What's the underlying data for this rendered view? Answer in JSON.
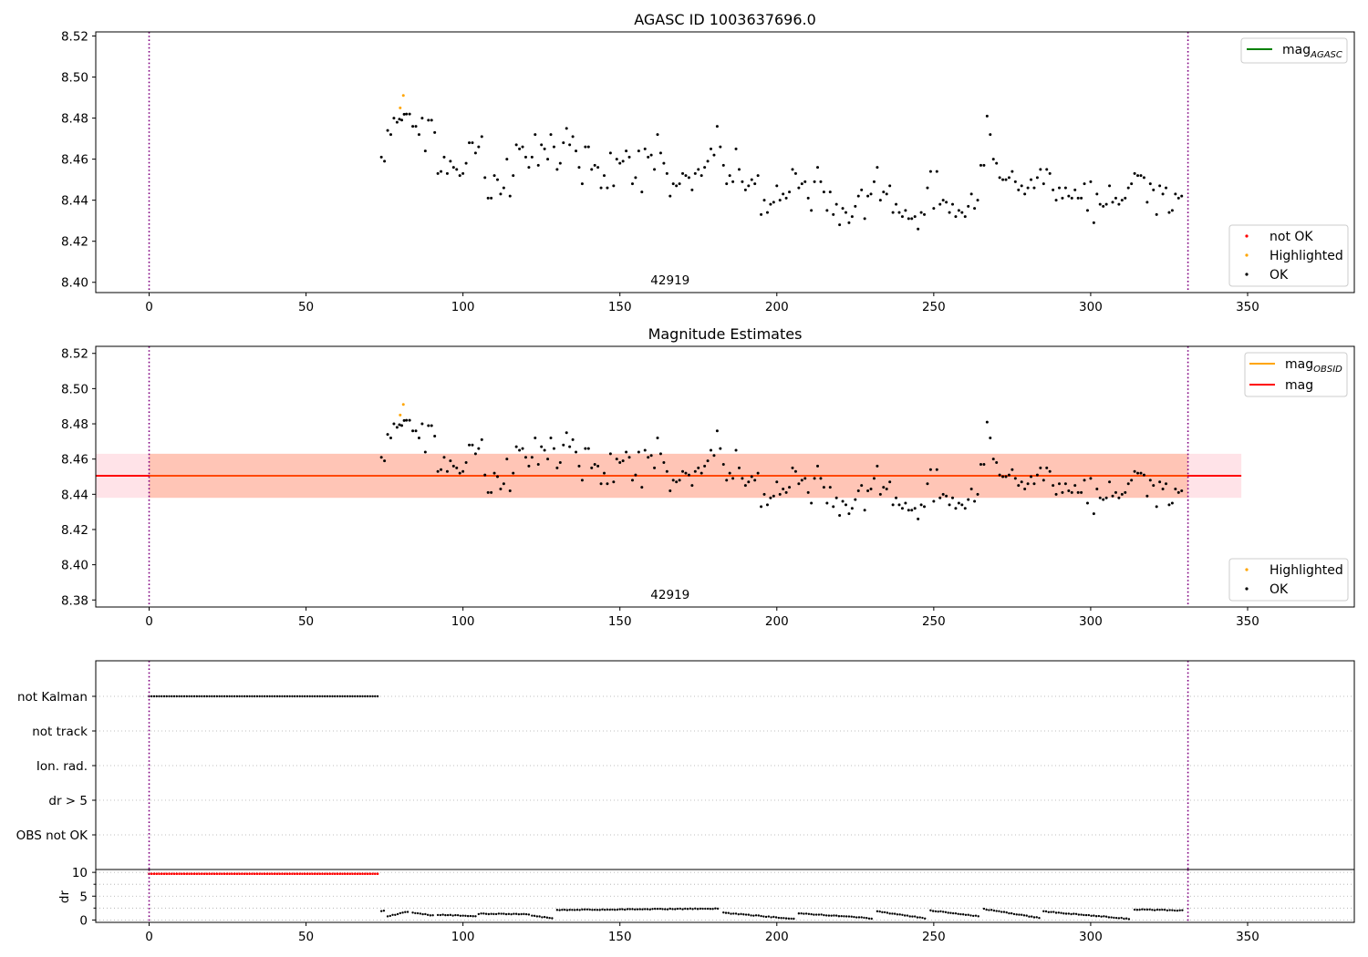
{
  "chart_data": [
    {
      "type": "scatter",
      "title": "AGASC ID 1003637696.0",
      "xlim": [
        -17,
        384
      ],
      "ylim": [
        8.395,
        8.522
      ],
      "xticks": [
        0,
        50,
        100,
        150,
        200,
        250,
        300,
        350
      ],
      "yticks": [
        8.4,
        8.42,
        8.44,
        8.46,
        8.48,
        8.5,
        8.52
      ],
      "obs_boundaries": [
        0,
        331
      ],
      "obs_labels": [
        {
          "x": 166,
          "text": "42919"
        }
      ],
      "line_legend": [
        {
          "name": "mag_AGASC",
          "color": "#008000"
        }
      ],
      "marker_legend": [
        {
          "name": "not OK",
          "color": "#ff0000"
        },
        {
          "name": "Highlighted",
          "color": "#ffa500"
        },
        {
          "name": "OK",
          "color": "#000000"
        }
      ],
      "highlighted": [
        [
          80,
          8.485
        ],
        [
          81,
          8.491
        ]
      ],
      "ok_anchors": [
        [
          74,
          8.461
        ],
        [
          75,
          8.459
        ],
        [
          76,
          8.474
        ],
        [
          77,
          8.472
        ],
        [
          78,
          8.48
        ],
        [
          79,
          8.478
        ],
        [
          82,
          8.482
        ],
        [
          83,
          8.482
        ],
        [
          84,
          8.476
        ],
        [
          85,
          8.476
        ],
        [
          86,
          8.472
        ],
        [
          87,
          8.48
        ],
        [
          88,
          8.464
        ],
        [
          89,
          8.479
        ],
        [
          90,
          8.479
        ],
        [
          91,
          8.473
        ],
        [
          92,
          8.453
        ],
        [
          93,
          8.454
        ],
        [
          94,
          8.461
        ],
        [
          95,
          8.453
        ],
        [
          96,
          8.459
        ],
        [
          97,
          8.456
        ],
        [
          98,
          8.455
        ],
        [
          99,
          8.452
        ],
        [
          100,
          8.453
        ],
        [
          101,
          8.458
        ],
        [
          102,
          8.468
        ],
        [
          103,
          8.468
        ],
        [
          104,
          8.463
        ],
        [
          105,
          8.466
        ],
        [
          106,
          8.471
        ],
        [
          107,
          8.451
        ],
        [
          108,
          8.441
        ],
        [
          109,
          8.441
        ],
        [
          110,
          8.452
        ],
        [
          111,
          8.45
        ],
        [
          112,
          8.443
        ],
        [
          113,
          8.446
        ],
        [
          114,
          8.46
        ],
        [
          115,
          8.442
        ],
        [
          116,
          8.452
        ],
        [
          117,
          8.467
        ],
        [
          118,
          8.465
        ],
        [
          119,
          8.466
        ],
        [
          120,
          8.461
        ],
        [
          121,
          8.456
        ],
        [
          122,
          8.461
        ],
        [
          123,
          8.472
        ],
        [
          124,
          8.457
        ],
        [
          125,
          8.467
        ],
        [
          126,
          8.465
        ],
        [
          127,
          8.46
        ],
        [
          128,
          8.472
        ],
        [
          129,
          8.466
        ],
        [
          130,
          8.455
        ],
        [
          131,
          8.458
        ],
        [
          132,
          8.468
        ],
        [
          133,
          8.475
        ],
        [
          134,
          8.467
        ],
        [
          135,
          8.471
        ],
        [
          136,
          8.464
        ],
        [
          137,
          8.456
        ],
        [
          138,
          8.448
        ],
        [
          139,
          8.466
        ],
        [
          140,
          8.466
        ],
        [
          141,
          8.455
        ],
        [
          142,
          8.457
        ],
        [
          143,
          8.456
        ],
        [
          144,
          8.446
        ],
        [
          145,
          8.452
        ],
        [
          146,
          8.446
        ],
        [
          147,
          8.463
        ],
        [
          148,
          8.447
        ],
        [
          149,
          8.46
        ],
        [
          150,
          8.458
        ],
        [
          151,
          8.459
        ],
        [
          152,
          8.464
        ],
        [
          153,
          8.461
        ],
        [
          154,
          8.448
        ],
        [
          155,
          8.451
        ],
        [
          156,
          8.464
        ],
        [
          157,
          8.444
        ],
        [
          158,
          8.465
        ],
        [
          159,
          8.461
        ],
        [
          160,
          8.462
        ],
        [
          161,
          8.455
        ],
        [
          162,
          8.472
        ],
        [
          163,
          8.463
        ],
        [
          164,
          8.458
        ],
        [
          165,
          8.453
        ],
        [
          166,
          8.442
        ],
        [
          167,
          8.448
        ],
        [
          168,
          8.447
        ],
        [
          169,
          8.448
        ],
        [
          170,
          8.453
        ],
        [
          171,
          8.452
        ],
        [
          172,
          8.451
        ],
        [
          173,
          8.445
        ],
        [
          174,
          8.453
        ],
        [
          175,
          8.455
        ],
        [
          176,
          8.452
        ],
        [
          177,
          8.456
        ],
        [
          178,
          8.459
        ],
        [
          179,
          8.465
        ],
        [
          180,
          8.462
        ],
        [
          181,
          8.476
        ],
        [
          182,
          8.466
        ],
        [
          183,
          8.457
        ],
        [
          184,
          8.448
        ],
        [
          185,
          8.452
        ],
        [
          186,
          8.449
        ],
        [
          187,
          8.465
        ],
        [
          188,
          8.455
        ],
        [
          189,
          8.449
        ],
        [
          190,
          8.445
        ],
        [
          191,
          8.447
        ],
        [
          192,
          8.45
        ],
        [
          193,
          8.448
        ],
        [
          194,
          8.452
        ],
        [
          195,
          8.433
        ],
        [
          196,
          8.44
        ],
        [
          197,
          8.434
        ],
        [
          198,
          8.438
        ],
        [
          199,
          8.439
        ],
        [
          200,
          8.447
        ],
        [
          201,
          8.44
        ],
        [
          202,
          8.443
        ],
        [
          203,
          8.441
        ],
        [
          204,
          8.444
        ],
        [
          205,
          8.455
        ],
        [
          206,
          8.453
        ],
        [
          207,
          8.446
        ],
        [
          208,
          8.448
        ],
        [
          209,
          8.449
        ],
        [
          210,
          8.441
        ],
        [
          211,
          8.435
        ],
        [
          212,
          8.449
        ],
        [
          213,
          8.456
        ],
        [
          214,
          8.449
        ],
        [
          215,
          8.444
        ],
        [
          216,
          8.435
        ],
        [
          217,
          8.444
        ],
        [
          218,
          8.433
        ],
        [
          219,
          8.438
        ],
        [
          220,
          8.428
        ],
        [
          221,
          8.436
        ],
        [
          222,
          8.434
        ],
        [
          223,
          8.429
        ],
        [
          224,
          8.432
        ],
        [
          225,
          8.437
        ],
        [
          226,
          8.442
        ],
        [
          227,
          8.445
        ],
        [
          228,
          8.431
        ],
        [
          229,
          8.442
        ],
        [
          230,
          8.443
        ],
        [
          231,
          8.449
        ],
        [
          232,
          8.456
        ],
        [
          233,
          8.44
        ],
        [
          234,
          8.444
        ],
        [
          235,
          8.443
        ],
        [
          236,
          8.447
        ],
        [
          237,
          8.434
        ],
        [
          238,
          8.438
        ],
        [
          239,
          8.434
        ],
        [
          240,
          8.432
        ],
        [
          241,
          8.435
        ],
        [
          242,
          8.431
        ],
        [
          243,
          8.431
        ],
        [
          244,
          8.432
        ],
        [
          245,
          8.426
        ],
        [
          246,
          8.434
        ],
        [
          247,
          8.433
        ],
        [
          248,
          8.446
        ],
        [
          249,
          8.454
        ],
        [
          250,
          8.436
        ],
        [
          251,
          8.454
        ],
        [
          252,
          8.438
        ],
        [
          253,
          8.44
        ],
        [
          254,
          8.439
        ],
        [
          255,
          8.434
        ],
        [
          256,
          8.438
        ],
        [
          257,
          8.432
        ],
        [
          258,
          8.435
        ],
        [
          259,
          8.434
        ],
        [
          260,
          8.432
        ],
        [
          261,
          8.437
        ],
        [
          262,
          8.443
        ],
        [
          263,
          8.436
        ],
        [
          264,
          8.44
        ],
        [
          265,
          8.457
        ],
        [
          266,
          8.457
        ],
        [
          267,
          8.481
        ],
        [
          268,
          8.472
        ],
        [
          269,
          8.46
        ],
        [
          270,
          8.458
        ],
        [
          271,
          8.451
        ],
        [
          272,
          8.45
        ],
        [
          273,
          8.45
        ],
        [
          274,
          8.451
        ],
        [
          275,
          8.454
        ],
        [
          276,
          8.449
        ],
        [
          277,
          8.445
        ],
        [
          278,
          8.447
        ],
        [
          279,
          8.443
        ],
        [
          280,
          8.446
        ],
        [
          281,
          8.45
        ],
        [
          282,
          8.446
        ],
        [
          283,
          8.451
        ],
        [
          284,
          8.455
        ],
        [
          285,
          8.448
        ],
        [
          286,
          8.455
        ],
        [
          287,
          8.453
        ],
        [
          288,
          8.445
        ],
        [
          289,
          8.44
        ],
        [
          290,
          8.446
        ],
        [
          291,
          8.441
        ],
        [
          292,
          8.446
        ],
        [
          293,
          8.442
        ],
        [
          294,
          8.441
        ],
        [
          295,
          8.445
        ],
        [
          296,
          8.441
        ],
        [
          297,
          8.441
        ],
        [
          298,
          8.448
        ],
        [
          299,
          8.435
        ],
        [
          300,
          8.449
        ],
        [
          301,
          8.429
        ],
        [
          302,
          8.443
        ],
        [
          303,
          8.438
        ],
        [
          304,
          8.437
        ],
        [
          305,
          8.438
        ],
        [
          306,
          8.447
        ],
        [
          307,
          8.439
        ],
        [
          308,
          8.441
        ],
        [
          309,
          8.438
        ],
        [
          310,
          8.44
        ],
        [
          311,
          8.441
        ],
        [
          312,
          8.446
        ],
        [
          313,
          8.448
        ],
        [
          314,
          8.453
        ],
        [
          315,
          8.452
        ],
        [
          316,
          8.452
        ],
        [
          317,
          8.451
        ],
        [
          318,
          8.439
        ],
        [
          319,
          8.448
        ],
        [
          320,
          8.445
        ],
        [
          321,
          8.433
        ],
        [
          322,
          8.447
        ],
        [
          323,
          8.443
        ],
        [
          324,
          8.446
        ],
        [
          325,
          8.434
        ],
        [
          326,
          8.435
        ],
        [
          327,
          8.443
        ],
        [
          328,
          8.441
        ],
        [
          329,
          8.442
        ]
      ]
    },
    {
      "type": "scatter",
      "title": "Magnitude Estimates",
      "xlim": [
        -17,
        384
      ],
      "ylim": [
        8.376,
        8.524
      ],
      "xticks": [
        0,
        50,
        100,
        150,
        200,
        250,
        300,
        350
      ],
      "yticks": [
        8.38,
        8.4,
        8.42,
        8.44,
        8.46,
        8.48,
        8.5,
        8.52
      ],
      "obs_boundaries": [
        0,
        331
      ],
      "obs_labels": [
        {
          "x": 166,
          "text": "42919"
        }
      ],
      "mag": 8.4505,
      "band": {
        "low": 8.438,
        "high": 8.463,
        "x_end": 348
      },
      "line_legend": [
        {
          "name": "mag_OBSID",
          "color": "#ffa500"
        },
        {
          "name": "mag",
          "color": "#ff0000"
        }
      ],
      "marker_legend": [
        {
          "name": "Highlighted",
          "color": "#ffa500"
        },
        {
          "name": "OK",
          "color": "#000000"
        }
      ]
    },
    {
      "type": "scatter",
      "title": "",
      "xlim": [
        -17,
        384
      ],
      "xticks": [
        0,
        50,
        100,
        150,
        200,
        250,
        300,
        350
      ],
      "obs_boundaries": [
        0,
        331
      ],
      "flag_categories": [
        "not Kalman",
        "not track",
        "Ion. rad.",
        "dr > 5",
        "OBS not OK"
      ],
      "flag_points": {
        "not Kalman": [
          0,
          73
        ]
      },
      "dr": {
        "ylabel": "dr",
        "ylim": [
          -0.5,
          10.6
        ],
        "yticks": [
          0,
          5,
          10
        ],
        "minor_yticks": [
          2.5,
          7.5
        ],
        "red_cap": {
          "x": [
            0,
            73
          ],
          "value": 9.7
        },
        "segments": [
          {
            "x": [
              74,
              75
            ],
            "values": [
              1.8,
              1.9
            ]
          },
          {
            "x": [
              76,
              83
            ],
            "values": [
              0.8,
              1.8
            ]
          },
          {
            "x": [
              84,
              91
            ],
            "values": [
              1.5,
              0.9
            ]
          },
          {
            "x": [
              92,
              104
            ],
            "values": [
              1.1,
              0.8
            ]
          },
          {
            "x": [
              105,
              121
            ],
            "values": [
              1.3,
              1.2
            ]
          },
          {
            "x": [
              122,
              129
            ],
            "values": [
              0.9,
              0.3
            ]
          },
          {
            "x": [
              130,
              182
            ],
            "values": [
              2.1,
              2.4
            ]
          },
          {
            "x": [
              183,
              206
            ],
            "values": [
              1.5,
              0.2
            ]
          },
          {
            "x": [
              207,
              231
            ],
            "values": [
              1.4,
              0.3
            ]
          },
          {
            "x": [
              232,
              248
            ],
            "values": [
              1.8,
              0.3
            ]
          },
          {
            "x": [
              249,
              265
            ],
            "values": [
              2.0,
              0.7
            ]
          },
          {
            "x": [
              266,
              284
            ],
            "values": [
              2.3,
              0.4
            ]
          },
          {
            "x": [
              285,
              313
            ],
            "values": [
              1.8,
              0.2
            ]
          },
          {
            "x": [
              314,
              330
            ],
            "values": [
              2.2,
              2.0
            ]
          }
        ]
      }
    }
  ]
}
